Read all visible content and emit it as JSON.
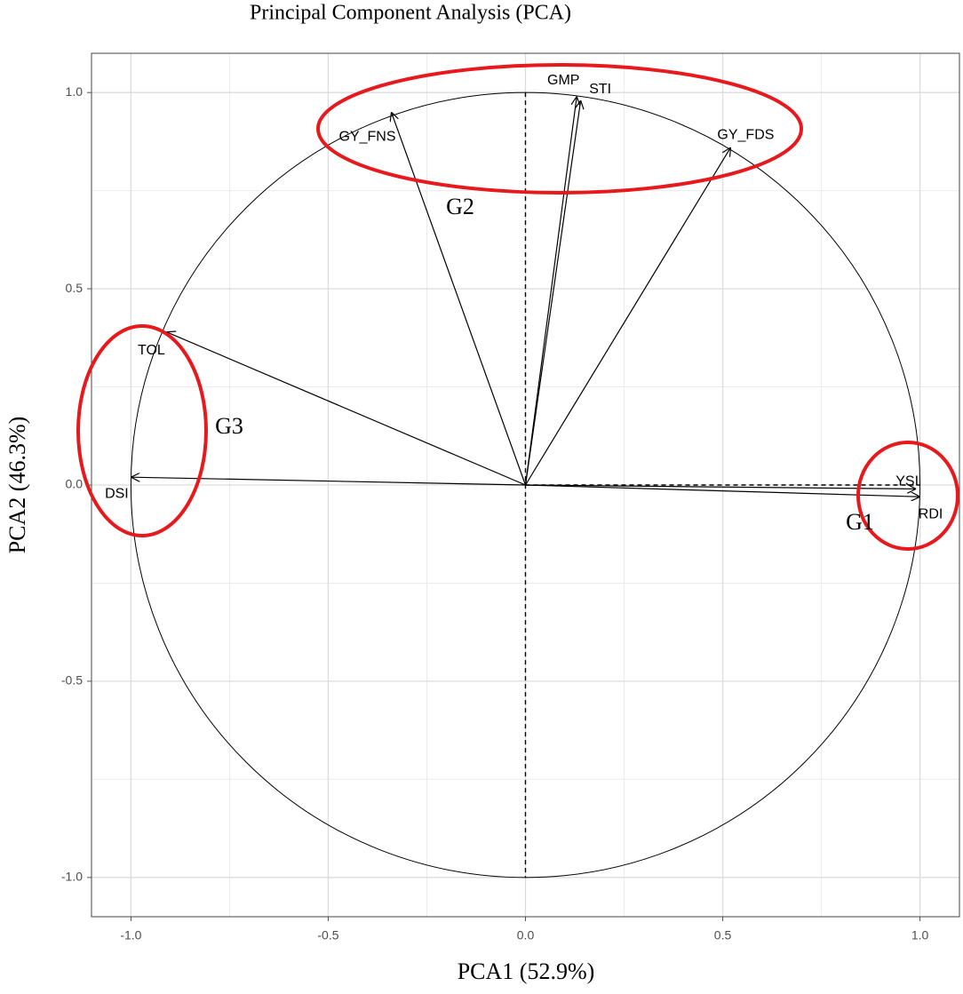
{
  "chart_data": {
    "type": "biplot",
    "title": "Principal Component Analysis (PCA)",
    "x_label": "PCA1 (52.9%)",
    "y_label": "PCA2 (46.3%)",
    "labels": [
      "GMP",
      "STI",
      "GY_FNS",
      "GY_FDS",
      "TOL",
      "DSI",
      "YSI",
      "RDI"
    ],
    "x": [
      0.13,
      0.14,
      -0.34,
      0.52,
      -0.91,
      -1.0,
      0.99,
      1.0
    ],
    "y": [
      0.99,
      0.98,
      0.95,
      0.86,
      0.39,
      0.02,
      -0.01,
      -0.03
    ],
    "color": "#000000",
    "xlim": [
      -1.1,
      1.1
    ],
    "ylim": [
      -1.1,
      1.1
    ],
    "xticks": [
      {
        "value": -1,
        "label": "-1.0"
      },
      {
        "value": -0.5,
        "label": "-0.5"
      },
      {
        "value": 0,
        "label": "0.0"
      },
      {
        "value": 0.5,
        "label": "0.5"
      },
      {
        "value": 1,
        "label": "1.0"
      }
    ],
    "yticks": [
      {
        "value": -1,
        "label": "-1.0"
      },
      {
        "value": -0.5,
        "label": "-0.5"
      },
      {
        "value": 0,
        "label": "0.0"
      },
      {
        "value": 0.5,
        "label": "0.5"
      },
      {
        "value": 1,
        "label": "1.0"
      }
    ],
    "grid": true,
    "annotations": [
      "G1",
      "G2",
      "G3"
    ],
    "highlight_color": "#e8191c"
  }
}
